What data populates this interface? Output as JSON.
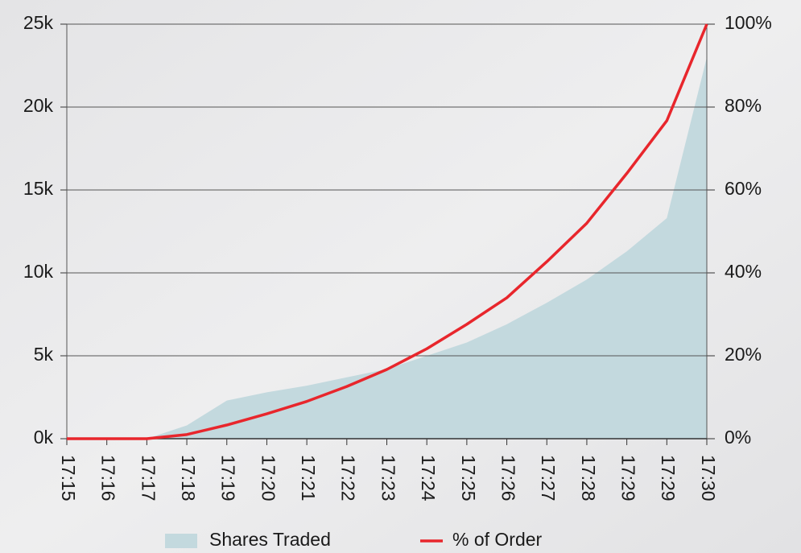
{
  "chart_data": {
    "type": "area-line",
    "categories": [
      "17:15",
      "17:16",
      "17:17",
      "17:18",
      "17:19",
      "17:20",
      "17:21",
      "17:22",
      "17:23",
      "17:24",
      "17:25",
      "17:26",
      "17:27",
      "17:28",
      "17:29",
      "17:29",
      "17:30"
    ],
    "series": [
      {
        "name": "Shares Traded",
        "type": "area",
        "color": "#c3d9de",
        "values": [
          0,
          0,
          0,
          800,
          2300,
          2800,
          3200,
          3700,
          4200,
          5000,
          5800,
          6900,
          8200,
          9600,
          11300,
          13300,
          23000
        ]
      },
      {
        "name": "% of Order",
        "type": "line",
        "axis": "y2",
        "color": "#e8262c",
        "values": [
          0,
          0,
          0,
          1,
          3.3,
          6,
          9,
          12.6,
          16.7,
          21.7,
          27.6,
          34,
          42.7,
          52,
          64,
          76.7,
          100
        ]
      }
    ],
    "ylim": [
      0,
      25000
    ],
    "yticks": [
      {
        "value": 0,
        "label": "0k"
      },
      {
        "value": 5000,
        "label": "5k"
      },
      {
        "value": 10000,
        "label": "10k"
      },
      {
        "value": 15000,
        "label": "15k"
      },
      {
        "value": 20000,
        "label": "20k"
      },
      {
        "value": 25000,
        "label": "25k"
      }
    ],
    "y2lim": [
      0,
      100
    ],
    "y2ticks": [
      {
        "value": 0,
        "label": "0%"
      },
      {
        "value": 20,
        "label": "20%"
      },
      {
        "value": 40,
        "label": "40%"
      },
      {
        "value": 60,
        "label": "60%"
      },
      {
        "value": 80,
        "label": "80%"
      },
      {
        "value": 100,
        "label": "100%"
      }
    ],
    "grid": true,
    "legend": "bottom"
  }
}
